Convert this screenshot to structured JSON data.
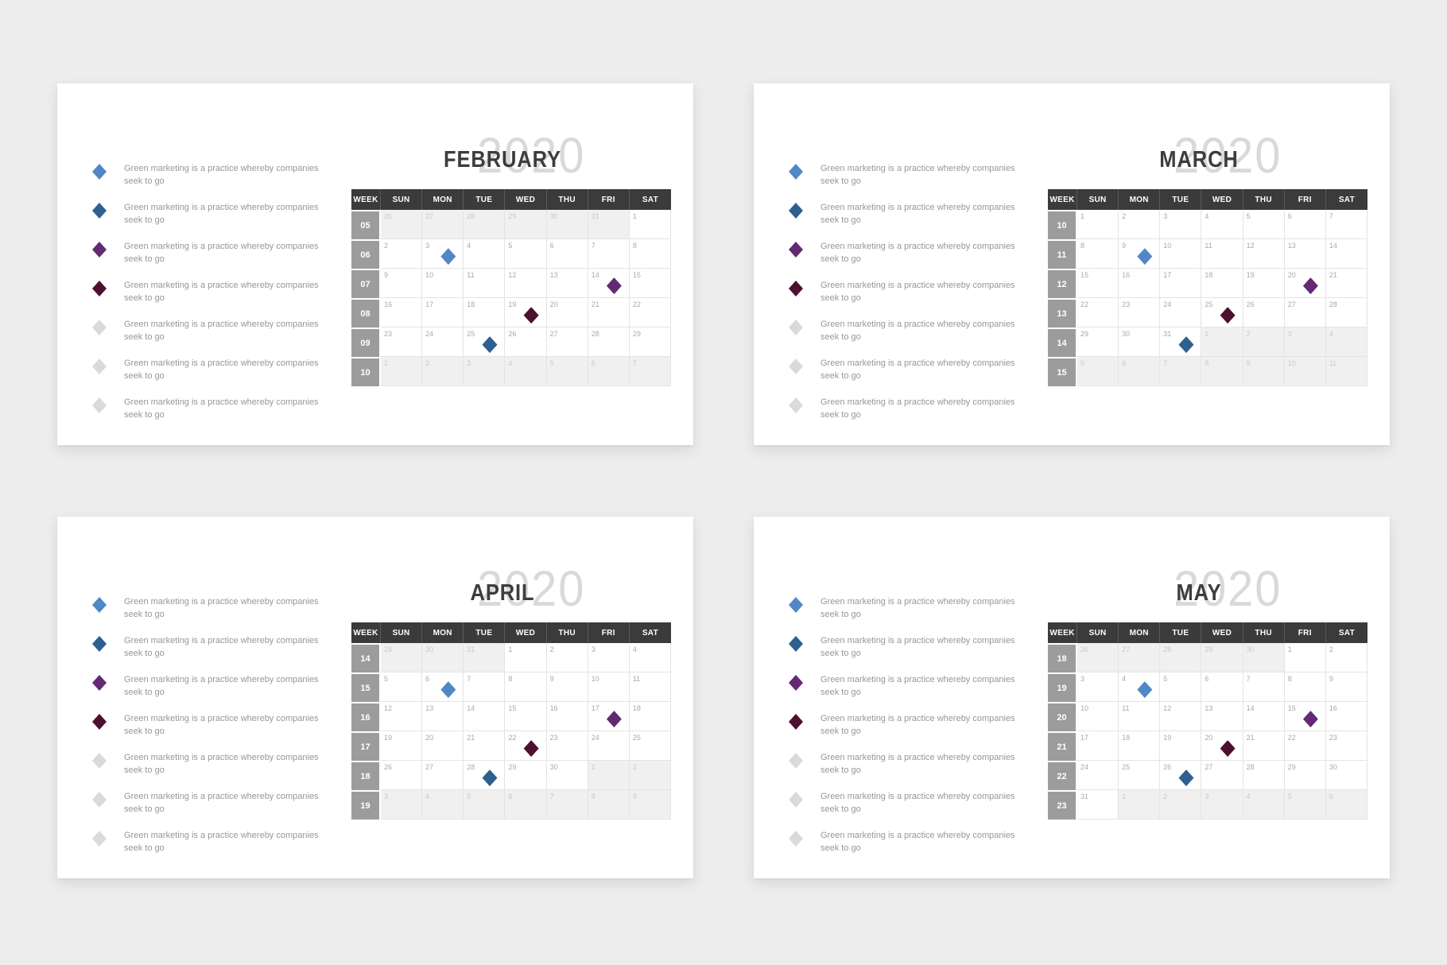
{
  "year_label": "2020",
  "legend_text": "Green marketing is a practice whereby companies seek to go",
  "day_headers": [
    "WEEK",
    "SUN",
    "MON",
    "TUE",
    "WED",
    "THU",
    "FRI",
    "SAT"
  ],
  "legend_markers": [
    "blue",
    "dark_blue",
    "purple",
    "maroon",
    "gray",
    "gray",
    "gray"
  ],
  "colors": {
    "page_bg": "#ededed",
    "slide_bg": "#ffffff",
    "header_bg": "#3b3b3b",
    "week_bg": "#9c9c9c",
    "out_cell_bg": "#f0f0f0",
    "grid_line": "#e4e4e4",
    "month_text": "#3d3d3d",
    "year_text": "#d9d9d9",
    "legend_text_color": "#979797",
    "blue": "#5287c7",
    "dark_blue": "#2d608f",
    "purple": "#622a72",
    "maroon": "#4d102f",
    "gray": "#dadada"
  },
  "months": [
    {
      "name": "FEBRUARY",
      "weeks": [
        {
          "num": "05",
          "days": [
            {
              "d": 26,
              "out": true
            },
            {
              "d": 27,
              "out": true
            },
            {
              "d": 28,
              "out": true
            },
            {
              "d": 29,
              "out": true
            },
            {
              "d": 30,
              "out": true
            },
            {
              "d": 31,
              "out": true
            },
            {
              "d": 1
            }
          ]
        },
        {
          "num": "06",
          "days": [
            {
              "d": 2
            },
            {
              "d": 3,
              "m": "blue"
            },
            {
              "d": 4
            },
            {
              "d": 5
            },
            {
              "d": 6
            },
            {
              "d": 7
            },
            {
              "d": 8
            }
          ]
        },
        {
          "num": "07",
          "days": [
            {
              "d": 9
            },
            {
              "d": 10
            },
            {
              "d": 11
            },
            {
              "d": 12
            },
            {
              "d": 13
            },
            {
              "d": 14,
              "m": "purple"
            },
            {
              "d": 15
            }
          ]
        },
        {
          "num": "08",
          "days": [
            {
              "d": 16
            },
            {
              "d": 17
            },
            {
              "d": 18
            },
            {
              "d": 19,
              "m": "maroon"
            },
            {
              "d": 20
            },
            {
              "d": 21
            },
            {
              "d": 22
            }
          ]
        },
        {
          "num": "09",
          "days": [
            {
              "d": 23
            },
            {
              "d": 24
            },
            {
              "d": 25,
              "m": "dark_blue"
            },
            {
              "d": 26
            },
            {
              "d": 27
            },
            {
              "d": 28
            },
            {
              "d": 29
            }
          ]
        },
        {
          "num": "10",
          "days": [
            {
              "d": 1,
              "out": true
            },
            {
              "d": 2,
              "out": true
            },
            {
              "d": 3,
              "out": true
            },
            {
              "d": 4,
              "out": true
            },
            {
              "d": 5,
              "out": true
            },
            {
              "d": 6,
              "out": true
            },
            {
              "d": 7,
              "out": true
            }
          ]
        }
      ]
    },
    {
      "name": "MARCH",
      "weeks": [
        {
          "num": "10",
          "days": [
            {
              "d": 1
            },
            {
              "d": 2
            },
            {
              "d": 3
            },
            {
              "d": 4
            },
            {
              "d": 5
            },
            {
              "d": 6
            },
            {
              "d": 7
            }
          ]
        },
        {
          "num": "11",
          "days": [
            {
              "d": 8
            },
            {
              "d": 9,
              "m": "blue"
            },
            {
              "d": 10
            },
            {
              "d": 11
            },
            {
              "d": 12
            },
            {
              "d": 13
            },
            {
              "d": 14
            }
          ]
        },
        {
          "num": "12",
          "days": [
            {
              "d": 15
            },
            {
              "d": 16
            },
            {
              "d": 17
            },
            {
              "d": 18
            },
            {
              "d": 19
            },
            {
              "d": 20,
              "m": "purple"
            },
            {
              "d": 21
            }
          ]
        },
        {
          "num": "13",
          "days": [
            {
              "d": 22
            },
            {
              "d": 23
            },
            {
              "d": 24
            },
            {
              "d": 25,
              "m": "maroon"
            },
            {
              "d": 26
            },
            {
              "d": 27
            },
            {
              "d": 28
            }
          ]
        },
        {
          "num": "14",
          "days": [
            {
              "d": 29
            },
            {
              "d": 30
            },
            {
              "d": 31,
              "m": "dark_blue"
            },
            {
              "d": 1,
              "out": true
            },
            {
              "d": 2,
              "out": true
            },
            {
              "d": 3,
              "out": true
            },
            {
              "d": 4,
              "out": true
            }
          ]
        },
        {
          "num": "15",
          "days": [
            {
              "d": 5,
              "out": true
            },
            {
              "d": 6,
              "out": true
            },
            {
              "d": 7,
              "out": true
            },
            {
              "d": 8,
              "out": true
            },
            {
              "d": 9,
              "out": true
            },
            {
              "d": 10,
              "out": true
            },
            {
              "d": 11,
              "out": true
            }
          ]
        }
      ]
    },
    {
      "name": "APRIL",
      "weeks": [
        {
          "num": "14",
          "days": [
            {
              "d": 29,
              "out": true
            },
            {
              "d": 30,
              "out": true
            },
            {
              "d": 31,
              "out": true
            },
            {
              "d": 1
            },
            {
              "d": 2
            },
            {
              "d": 3
            },
            {
              "d": 4
            }
          ]
        },
        {
          "num": "15",
          "days": [
            {
              "d": 5
            },
            {
              "d": 6,
              "m": "blue"
            },
            {
              "d": 7
            },
            {
              "d": 8
            },
            {
              "d": 9
            },
            {
              "d": 10
            },
            {
              "d": 11
            }
          ]
        },
        {
          "num": "16",
          "days": [
            {
              "d": 12
            },
            {
              "d": 13
            },
            {
              "d": 14
            },
            {
              "d": 15
            },
            {
              "d": 16
            },
            {
              "d": 17,
              "m": "purple"
            },
            {
              "d": 18
            }
          ]
        },
        {
          "num": "17",
          "days": [
            {
              "d": 19
            },
            {
              "d": 20
            },
            {
              "d": 21
            },
            {
              "d": 22,
              "m": "maroon"
            },
            {
              "d": 23
            },
            {
              "d": 24
            },
            {
              "d": 25
            }
          ]
        },
        {
          "num": "18",
          "days": [
            {
              "d": 26
            },
            {
              "d": 27
            },
            {
              "d": 28,
              "m": "dark_blue"
            },
            {
              "d": 29
            },
            {
              "d": 30
            },
            {
              "d": 1,
              "out": true
            },
            {
              "d": 2,
              "out": true
            }
          ]
        },
        {
          "num": "19",
          "days": [
            {
              "d": 3,
              "out": true
            },
            {
              "d": 4,
              "out": true
            },
            {
              "d": 5,
              "out": true
            },
            {
              "d": 6,
              "out": true
            },
            {
              "d": 7,
              "out": true
            },
            {
              "d": 8,
              "out": true
            },
            {
              "d": 9,
              "out": true
            }
          ]
        }
      ]
    },
    {
      "name": "MAY",
      "weeks": [
        {
          "num": "18",
          "days": [
            {
              "d": 26,
              "out": true
            },
            {
              "d": 27,
              "out": true
            },
            {
              "d": 28,
              "out": true
            },
            {
              "d": 29,
              "out": true
            },
            {
              "d": 30,
              "out": true
            },
            {
              "d": 1
            },
            {
              "d": 2
            }
          ]
        },
        {
          "num": "19",
          "days": [
            {
              "d": 3
            },
            {
              "d": 4,
              "m": "blue"
            },
            {
              "d": 5
            },
            {
              "d": 6
            },
            {
              "d": 7
            },
            {
              "d": 8
            },
            {
              "d": 9
            }
          ]
        },
        {
          "num": "20",
          "days": [
            {
              "d": 10
            },
            {
              "d": 11
            },
            {
              "d": 12
            },
            {
              "d": 13
            },
            {
              "d": 14
            },
            {
              "d": 15,
              "m": "purple"
            },
            {
              "d": 16
            }
          ]
        },
        {
          "num": "21",
          "days": [
            {
              "d": 17
            },
            {
              "d": 18
            },
            {
              "d": 19
            },
            {
              "d": 20,
              "m": "maroon"
            },
            {
              "d": 21
            },
            {
              "d": 22
            },
            {
              "d": 23
            }
          ]
        },
        {
          "num": "22",
          "days": [
            {
              "d": 24
            },
            {
              "d": 25
            },
            {
              "d": 26,
              "m": "dark_blue"
            },
            {
              "d": 27
            },
            {
              "d": 28
            },
            {
              "d": 29
            },
            {
              "d": 30
            }
          ]
        },
        {
          "num": "23",
          "days": [
            {
              "d": 31
            },
            {
              "d": 1,
              "out": true
            },
            {
              "d": 2,
              "out": true
            },
            {
              "d": 3,
              "out": true
            },
            {
              "d": 4,
              "out": true
            },
            {
              "d": 5,
              "out": true
            },
            {
              "d": 6,
              "out": true
            }
          ]
        }
      ]
    }
  ]
}
